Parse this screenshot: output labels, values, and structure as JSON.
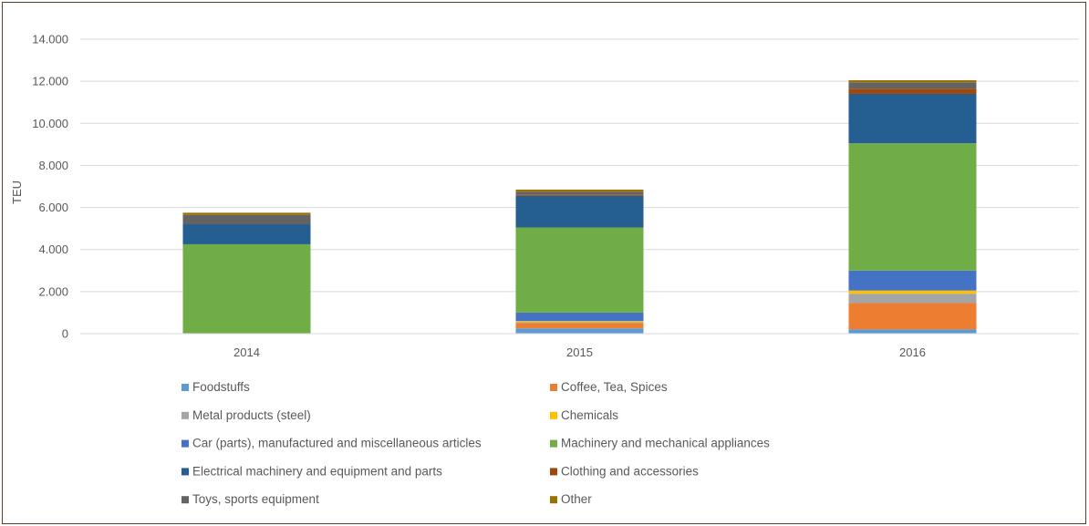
{
  "chart_data": {
    "type": "bar",
    "stacked": true,
    "categories": [
      "2014",
      "2015",
      "2016"
    ],
    "ylabel": "TEU",
    "ylim": [
      0,
      14000
    ],
    "yticks": [
      0,
      2000,
      4000,
      6000,
      8000,
      10000,
      12000,
      14000
    ],
    "ytick_labels": [
      "0",
      "2.000",
      "4.000",
      "6.000",
      "8.000",
      "10.000",
      "12.000",
      "14.000"
    ],
    "grid": true,
    "legend_position": "bottom",
    "series": [
      {
        "name": "Foodstuffs",
        "color": "#5B9BD5",
        "values": [
          0,
          250,
          200
        ]
      },
      {
        "name": "Coffee, Tea, Spices",
        "color": "#ED7D31",
        "values": [
          0,
          250,
          1250
        ]
      },
      {
        "name": "Metal products (steel)",
        "color": "#A5A5A5",
        "values": [
          0,
          50,
          450
        ]
      },
      {
        "name": "Chemicals",
        "color": "#FFC000",
        "values": [
          0,
          50,
          150
        ]
      },
      {
        "name": "Car (parts), manufactured and miscellaneous articles",
        "color": "#4472C4",
        "values": [
          0,
          400,
          950
        ]
      },
      {
        "name": "Machinery and mechanical appliances",
        "color": "#70AD47",
        "values": [
          4250,
          4050,
          6050
        ]
      },
      {
        "name": "Electrical machinery and equipment and parts",
        "color": "#255E91",
        "values": [
          950,
          1500,
          2350
        ]
      },
      {
        "name": "Clothing and accessories",
        "color": "#9E480E",
        "values": [
          0,
          50,
          250
        ]
      },
      {
        "name": "Toys, sports equipment",
        "color": "#636363",
        "values": [
          450,
          150,
          300
        ]
      },
      {
        "name": "Other",
        "color": "#997300",
        "values": [
          100,
          100,
          100
        ]
      }
    ]
  }
}
